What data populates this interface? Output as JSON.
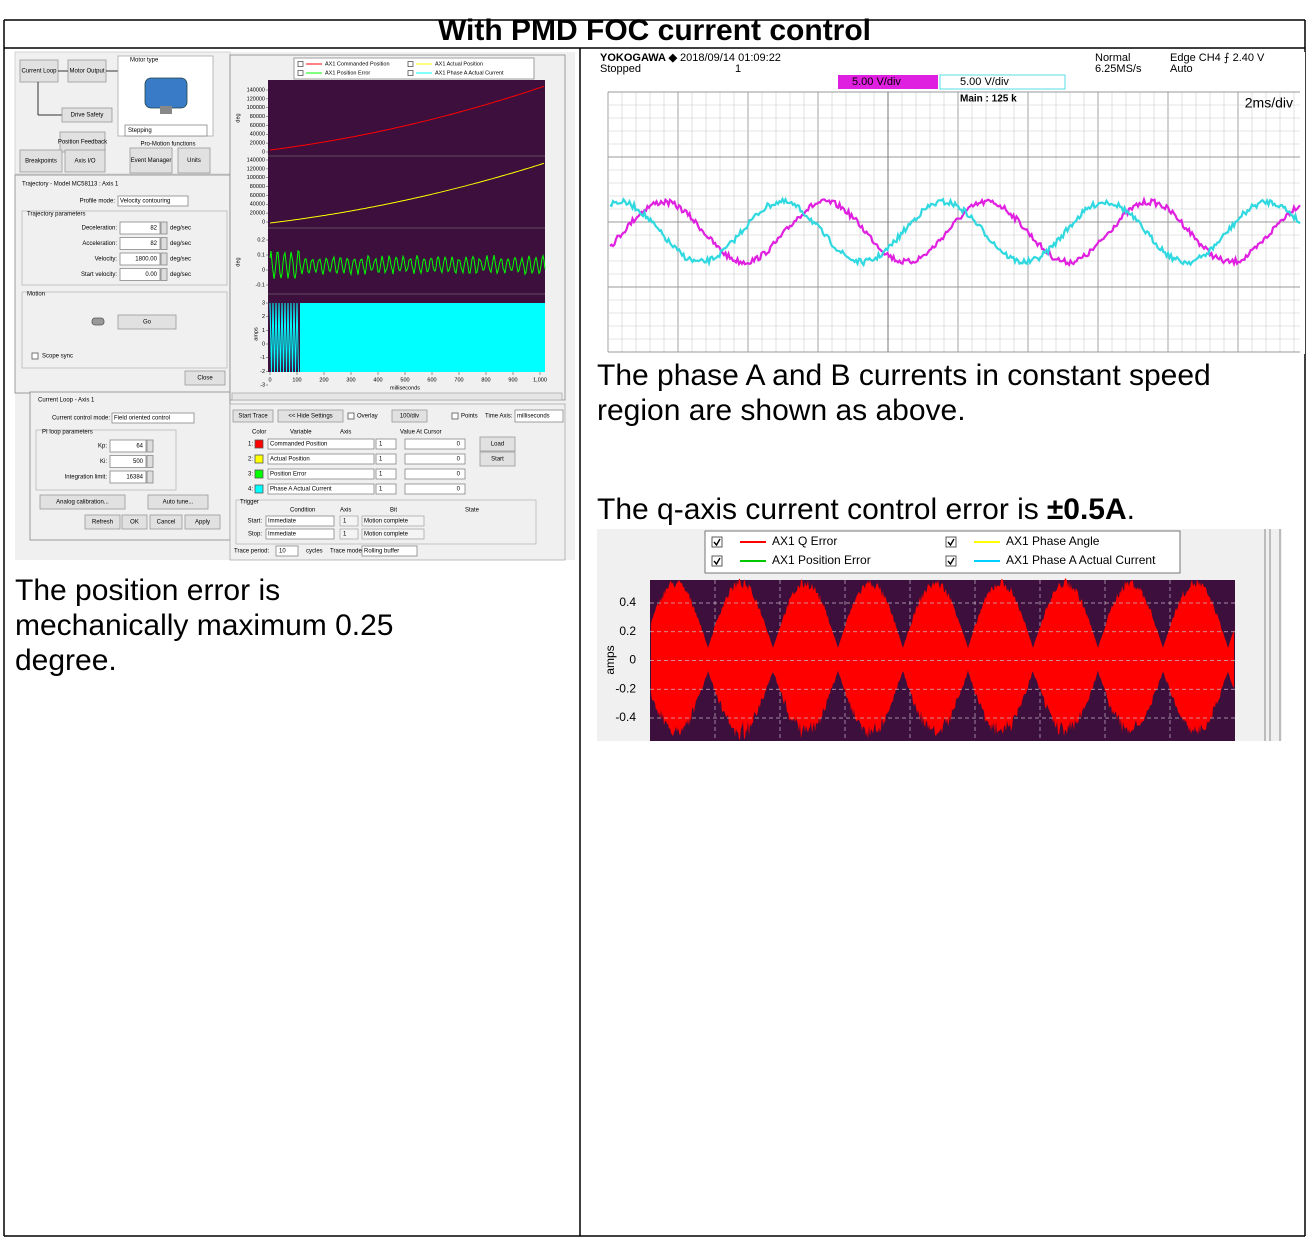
{
  "title": "With PMD FOC current control",
  "left": {
    "ui": {
      "diagram": {
        "current_loop": "Current Loop",
        "motor_output": "Motor Output",
        "motor_type": "Motor type",
        "drive_safety": "Drive Safety",
        "position_feedback": "Position Feedback",
        "stepping": "Stepping",
        "functions": "Pro-Motion functions",
        "buttons": [
          "Breakpoints",
          "Axis I/O",
          "Event Manager",
          "Units"
        ]
      },
      "trajectory": {
        "title": "Trajectory - Model MC58113 : Axis 1",
        "profile_label": "Profile mode:",
        "profile": "Velocity contouring",
        "group": "Trajectory parameters",
        "params": [
          {
            "label": "Deceleration:",
            "value": "82",
            "unit": "deg/sec"
          },
          {
            "label": "Acceleration:",
            "value": "82",
            "unit": "deg/sec"
          },
          {
            "label": "Velocity:",
            "value": "1800.00",
            "unit": "deg/sec"
          },
          {
            "label": "Start velocity:",
            "value": "0.00",
            "unit": "deg/sec"
          }
        ],
        "motion": "Motion",
        "go": "Go",
        "scope_sync": "Scope sync",
        "close": "Close"
      },
      "current_loop": {
        "title": "Current Loop - Axis 1",
        "mode_label": "Current control mode:",
        "mode": "Field oriented control",
        "group": "PI loop parameters",
        "params": [
          {
            "label": "Kp:",
            "value": "64"
          },
          {
            "label": "Ki:",
            "value": "500"
          },
          {
            "label": "Integration limit:",
            "value": "16384"
          }
        ],
        "buttons": [
          "Analog calibration...",
          "Auto tune...",
          "Refresh",
          "OK",
          "Cancel",
          "Apply"
        ]
      }
    },
    "plot": {
      "legend": [
        {
          "name": "AX1 Commanded Position",
          "color": "#ff0000"
        },
        {
          "name": "AX1 Actual Position",
          "color": "#ffff00"
        },
        {
          "name": "AX1 Position Error",
          "color": "#00ff00"
        },
        {
          "name": "AX1 Phase A Actual Current",
          "color": "#00ffff"
        }
      ],
      "pos_ticks": [
        140000,
        120000,
        100000,
        80000,
        60000,
        40000,
        20000,
        0
      ],
      "pos_label": "deg",
      "err_ticks": [
        0.2,
        0.1,
        0,
        -0.1
      ],
      "err_label": "deg",
      "cur_ticks": [
        3,
        2,
        1,
        0,
        -1,
        -2,
        -3
      ],
      "cur_label": "amps",
      "xlim": [
        0,
        1000
      ],
      "xticks": [
        0,
        100,
        200,
        300,
        400,
        500,
        600,
        700,
        800,
        900,
        {
          "value": 1000,
          "label": "1,000"
        }
      ],
      "xlabel": "milliseconds",
      "background": "#3c0f3c"
    },
    "trace": {
      "buttons": [
        "Start Trace",
        "<< Hide Settings"
      ],
      "overlay": "Overlay",
      "scale": "100/div",
      "points": "Points",
      "time_axis": "Time Axis:",
      "time_unit": "milliseconds",
      "headers": [
        "Color",
        "Variable",
        "Axis",
        "Value At Cursor"
      ],
      "rows": [
        {
          "index": "1:",
          "variable": "Commanded Position",
          "axis": "1",
          "value": "0"
        },
        {
          "index": "2:",
          "variable": "Actual Position",
          "axis": "1",
          "value": "0"
        },
        {
          "index": "3:",
          "variable": "Position Error",
          "axis": "1",
          "value": "0"
        },
        {
          "index": "4:",
          "variable": "Phase A Actual Current",
          "axis": "1",
          "value": "0"
        }
      ],
      "load": "Load",
      "start": "Start",
      "trigger": {
        "title": "Trigger",
        "headers": [
          "Condition",
          "Axis",
          "Bit",
          "State"
        ],
        "rows": [
          {
            "label": "Start:",
            "condition": "Immediate",
            "axis": "1",
            "bit": "Motion complete"
          },
          {
            "label": "Stop:",
            "condition": "Immediate",
            "axis": "1",
            "bit": "Motion complete"
          }
        ]
      },
      "period_label": "Trace period:",
      "period": "10",
      "cycles": "cycles",
      "mode_label": "Trace mode:",
      "mode": "Rolling buffer"
    },
    "caption": "The position error is mechanically maximum 0.25 degree."
  },
  "right": {
    "scope": {
      "brand": "YOKOGAWA ◆",
      "datetime": "2018/09/14 01:09:22",
      "status": "Stopped",
      "count": "1",
      "mode": "Normal",
      "rate": "6.25MS/s",
      "trigger": "Edge CH4 ⨍ 2.40 V",
      "trigger_mode": "Auto",
      "ch1": "5.00 V/div",
      "ch2": "5.00 V/div",
      "main": "Main : 125 k",
      "timebase": "2ms/div",
      "colors": [
        "#e020e0",
        "#30d8e0"
      ]
    },
    "caption1": "The phase A and B currents in constant speed region are shown as above.",
    "caption2": {
      "prefix": "The q-axis current control error is",
      "value": "±0.5A",
      "suffix": "."
    },
    "q_plot": {
      "legend": [
        {
          "name": "AX1 Q Error",
          "color": "#ff0000"
        },
        {
          "name": "AX1 Phase Angle",
          "color": "#ffff00"
        },
        {
          "name": "AX1 Position Error",
          "color": "#00c800"
        },
        {
          "name": "AX1 Phase A Actual Current",
          "color": "#00d0ff"
        }
      ],
      "ylabel": "amps",
      "ylim": [
        -0.56,
        0.56
      ],
      "yticks": [
        0.4,
        0.2,
        0,
        -0.2,
        -0.4
      ],
      "background": "#3c0f3c"
    }
  }
}
